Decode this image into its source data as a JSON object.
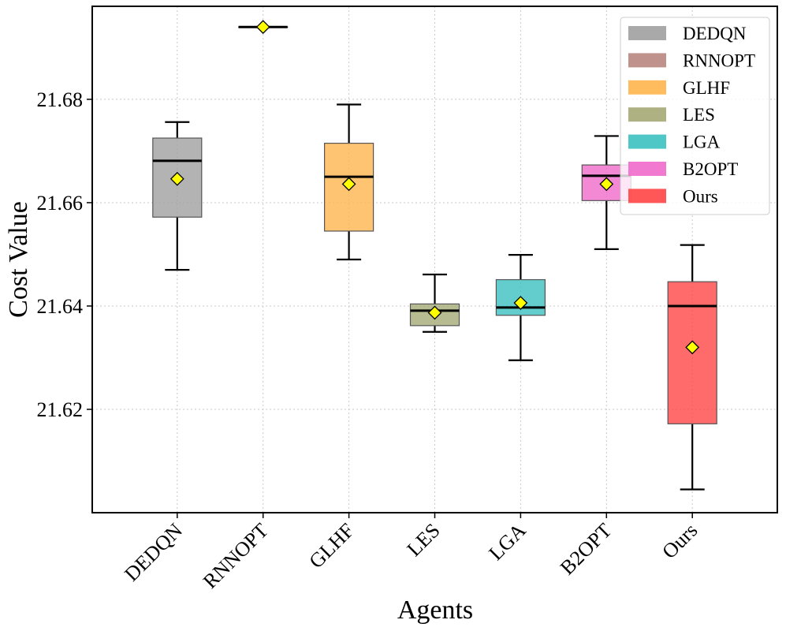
{
  "chart_data": {
    "type": "box",
    "xlabel": "Agents",
    "ylabel": "Cost Value",
    "ylim": [
      21.6,
      21.698
    ],
    "yticks": [
      21.62,
      21.64,
      21.66,
      21.68
    ],
    "ytick_labels": [
      "21.62",
      "21.64",
      "21.66",
      "21.68"
    ],
    "grid": true,
    "legend_position": "top-right",
    "mean_marker": "yellow diamond",
    "series": [
      {
        "name": "DEDQN",
        "color": "#a0a0a0",
        "whisker_low": 21.647,
        "q1": 21.6572,
        "median": 21.6681,
        "q3": 21.6725,
        "whisker_high": 21.6756,
        "mean": 21.6646
      },
      {
        "name": "RNNOPT",
        "color": "#b8877f",
        "whisker_low": 21.694,
        "q1": 21.694,
        "median": 21.694,
        "q3": 21.694,
        "whisker_high": 21.694,
        "mean": 21.694
      },
      {
        "name": "GLHF",
        "color": "#ffb54d",
        "whisker_low": 21.649,
        "q1": 21.6545,
        "median": 21.665,
        "q3": 21.6715,
        "whisker_high": 21.679,
        "mean": 21.6636
      },
      {
        "name": "LES",
        "color": "#a5aa75",
        "whisker_low": 21.635,
        "q1": 21.6362,
        "median": 21.6391,
        "q3": 21.6404,
        "whisker_high": 21.6461,
        "mean": 21.6387
      },
      {
        "name": "LGA",
        "color": "#3cc1c1",
        "whisker_low": 21.6295,
        "q1": 21.6382,
        "median": 21.6397,
        "q3": 21.6451,
        "whisker_high": 21.6499,
        "mean": 21.6406
      },
      {
        "name": "B2OPT",
        "color": "#f06bcb",
        "whisker_low": 21.651,
        "q1": 21.6604,
        "median": 21.6652,
        "q3": 21.6673,
        "whisker_high": 21.6729,
        "mean": 21.6636
      },
      {
        "name": "Ours",
        "color": "#ff4545",
        "whisker_low": 21.6045,
        "q1": 21.6172,
        "median": 21.64,
        "q3": 21.6447,
        "whisker_high": 21.6518,
        "mean": 21.632
      }
    ]
  }
}
